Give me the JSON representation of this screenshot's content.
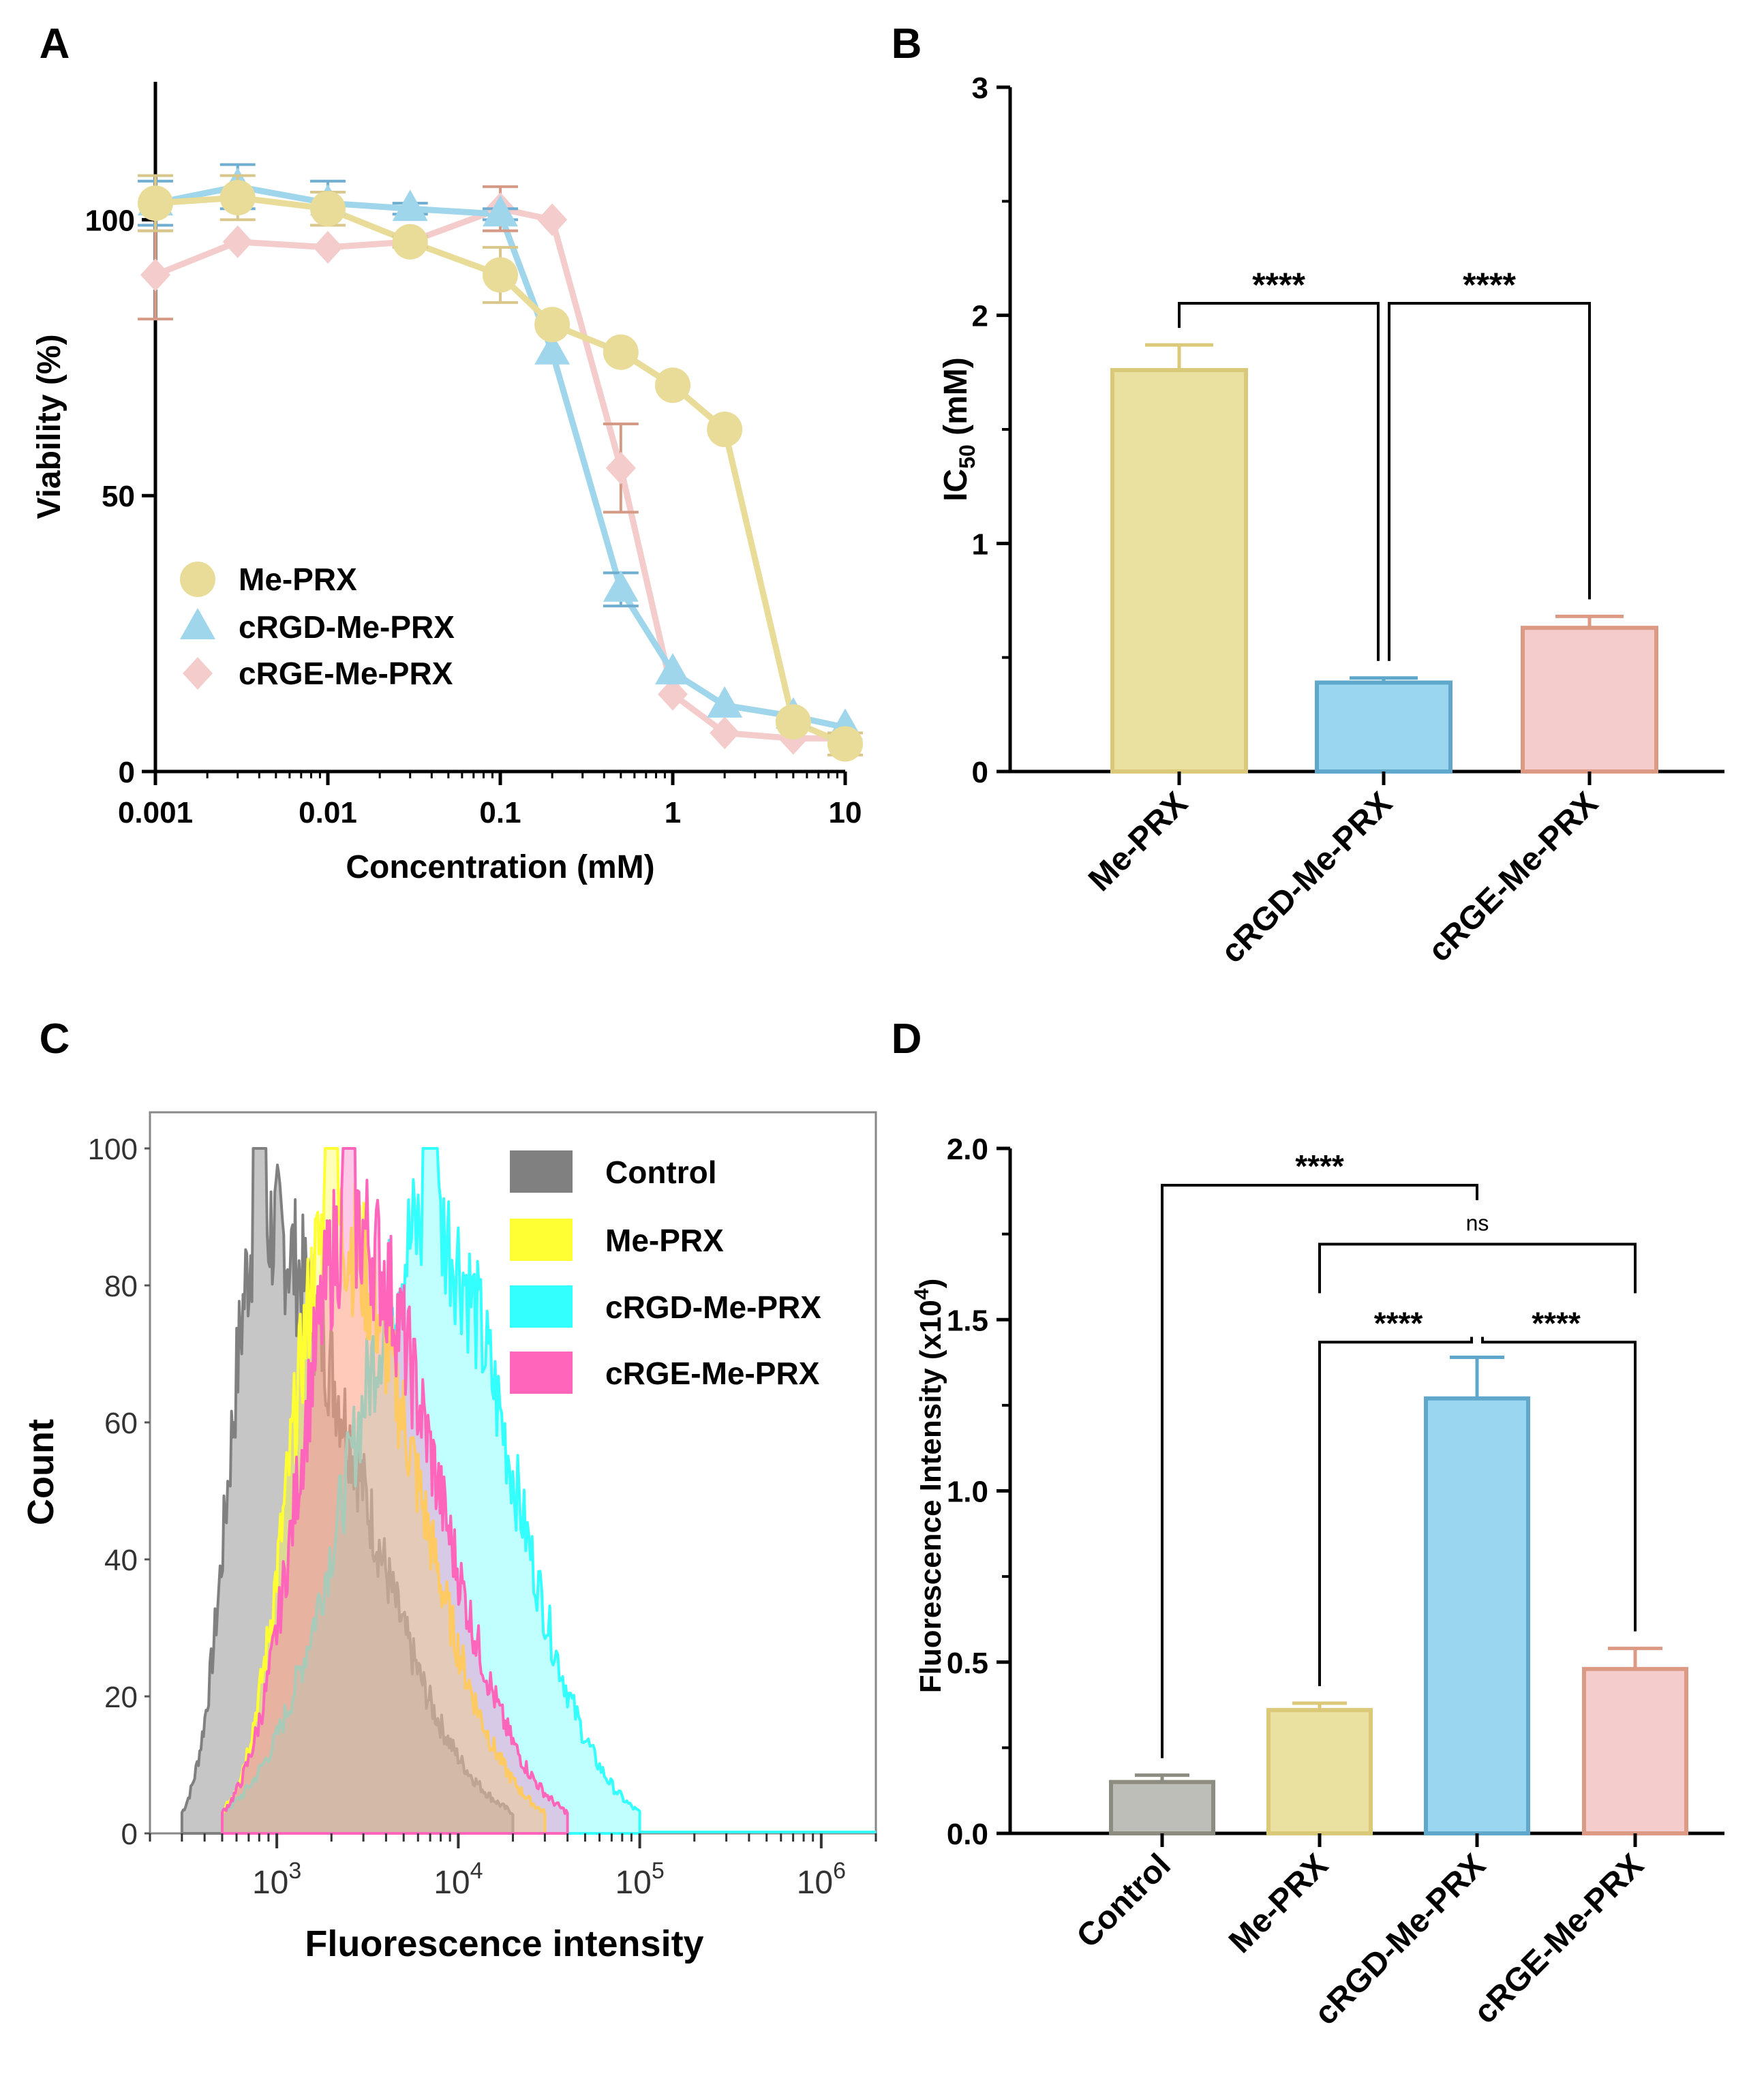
{
  "chart_data": [
    {
      "panel": "A",
      "type": "line",
      "xscale": "log",
      "xlabel": "Concentration (mM)",
      "ylabel": "Viability (%)",
      "xlim": [
        0.001,
        10
      ],
      "ylim": [
        0,
        125
      ],
      "xticks": [
        0.001,
        0.01,
        0.1,
        1,
        10
      ],
      "xtick_labels": [
        "0.001",
        "0.01",
        "0.1",
        "1",
        "10"
      ],
      "yticks": [
        0,
        50,
        100
      ],
      "ytick_labels": [
        "0",
        "50",
        "100"
      ],
      "legend_position": "bottom-left",
      "series": [
        {
          "name": "Me-PRX",
          "color": "#E8DC98",
          "marker": "circle",
          "x": [
            0.001,
            0.003,
            0.01,
            0.03,
            0.1,
            0.2,
            0.5,
            1,
            2,
            5,
            10
          ],
          "y": [
            103,
            104,
            102,
            96,
            90,
            81,
            76,
            70,
            62,
            9,
            5
          ],
          "err": [
            5,
            4,
            3,
            1,
            5,
            0,
            0,
            0,
            0,
            0,
            2
          ]
        },
        {
          "name": "cRGD-Me-PRX",
          "color": "#9FD6EC",
          "marker": "triangle",
          "x": [
            0.001,
            0.003,
            0.01,
            0.03,
            0.1,
            0.2,
            0.5,
            1,
            2,
            5,
            10
          ],
          "y": [
            103,
            106,
            103,
            102,
            101,
            76,
            33,
            18,
            12,
            10,
            8
          ],
          "err": [
            4,
            4,
            4,
            1,
            1,
            0,
            3,
            0,
            0,
            0,
            0
          ]
        },
        {
          "name": "cRGE-Me-PRX",
          "color": "#F4CCCC",
          "marker": "diamond",
          "x": [
            0.001,
            0.003,
            0.01,
            0.03,
            0.1,
            0.2,
            0.5,
            1,
            2,
            5,
            10
          ],
          "y": [
            90,
            96,
            95,
            96,
            102,
            100,
            55,
            14,
            7,
            6,
            6
          ],
          "err": [
            8,
            0,
            0,
            0,
            4,
            0,
            8,
            0,
            0,
            0,
            0
          ]
        }
      ]
    },
    {
      "panel": "B",
      "type": "bar",
      "ylabel_main": "IC",
      "ylabel_sub": "50",
      "ylabel_unit": " (mM)",
      "ylim": [
        0,
        3
      ],
      "yticks": [
        0,
        1,
        2,
        3
      ],
      "ytick_labels": [
        "0",
        "1",
        "2",
        "3"
      ],
      "categories": [
        "Me-PRX",
        "cRGD-Me-PRX",
        "cRGE-Me-PRX"
      ],
      "values": [
        1.76,
        0.39,
        0.63
      ],
      "errors": [
        0.11,
        0.02,
        0.05
      ],
      "fills": [
        "#EAE09F",
        "#9BD6F0",
        "#F4CCCC"
      ],
      "strokes": [
        "#D9C978",
        "#5FA8CC",
        "#DC9A84"
      ],
      "significance": [
        {
          "from": 0,
          "to": 1,
          "label": "****"
        },
        {
          "from": 1,
          "to": 2,
          "label": "****"
        }
      ]
    },
    {
      "panel": "C",
      "type": "histogram",
      "xscale": "log",
      "xlabel": "Fluorescence intensity",
      "ylabel": "Count",
      "xlim": [
        200,
        2000000
      ],
      "ylim": [
        0,
        100
      ],
      "yticks": [
        0,
        20,
        40,
        60,
        80,
        100
      ],
      "ytick_labels": [
        "0",
        "20",
        "40",
        "60",
        "80",
        "100"
      ],
      "xtick_base": "10",
      "xtick_exponents": [
        "3",
        "4",
        "5",
        "6"
      ],
      "series": [
        {
          "name": "Control",
          "color": "#808080",
          "mode": 800,
          "low": 300,
          "high": 20000
        },
        {
          "name": "Me-PRX",
          "color": "#FFFF33",
          "mode": 2000,
          "low": 500,
          "high": 30000
        },
        {
          "name": "cRGD-Me-PRX",
          "color": "#33FFFF",
          "mode": 7000,
          "low": 500,
          "high": 100000
        },
        {
          "name": "cRGE-Me-PRX",
          "color": "#FF66BB",
          "mode": 2500,
          "low": 500,
          "high": 40000
        }
      ]
    },
    {
      "panel": "D",
      "type": "bar",
      "ylabel_main": "Fluorescence Intensity (x10",
      "ylabel_sup": "4",
      "ylabel_end": ")",
      "ylim": [
        0,
        2
      ],
      "yticks": [
        0,
        0.5,
        1,
        1.5,
        2
      ],
      "ytick_labels": [
        "0.0",
        "0.5",
        "1.0",
        "1.5",
        "2.0"
      ],
      "categories": [
        "Control",
        "Me-PRX",
        "cRGD-Me-PRX",
        "cRGE-Me-PRX"
      ],
      "values": [
        0.15,
        0.36,
        1.27,
        0.48
      ],
      "errors": [
        0.02,
        0.02,
        0.12,
        0.06
      ],
      "fills": [
        "#BEBEB8",
        "#EAE09F",
        "#9BD6F0",
        "#F4CCCC"
      ],
      "strokes": [
        "#8C8C80",
        "#D9C978",
        "#5FA8CC",
        "#DC9A84"
      ],
      "significance": [
        {
          "from": 0,
          "to": 2,
          "label": "****",
          "level": 2.0
        },
        {
          "from": 1,
          "to": 3,
          "label": "ns",
          "level": 1.8
        },
        {
          "from": 1,
          "to": 2,
          "label": "****",
          "level": 1.5
        },
        {
          "from": 2,
          "to": 3,
          "label": "****",
          "level": 1.5
        }
      ]
    }
  ],
  "panel_labels": [
    "A",
    "B",
    "C",
    "D"
  ]
}
